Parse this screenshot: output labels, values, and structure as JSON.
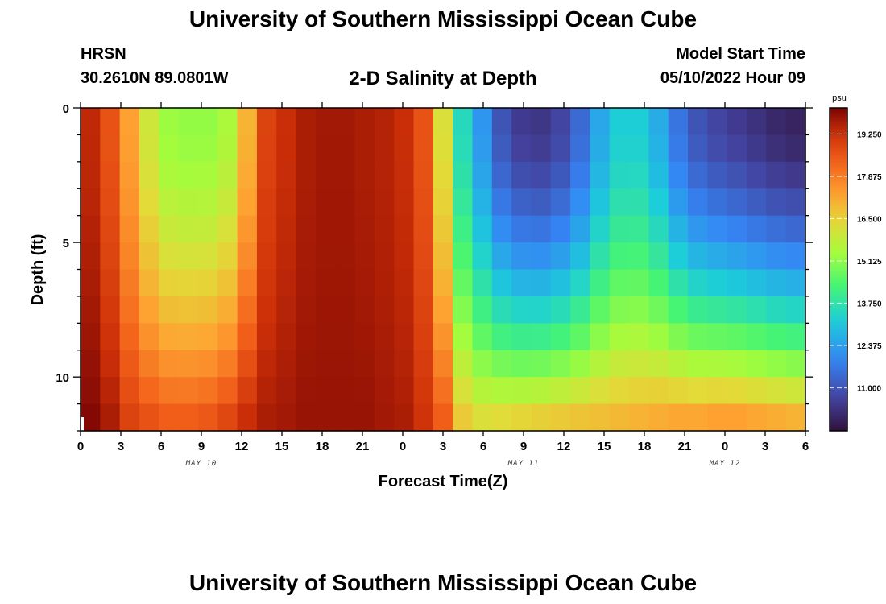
{
  "header": {
    "title": "University of Southern Mississippi Ocean Cube",
    "station": "HRSN",
    "coords": "30.2610N  89.0801W",
    "plot_title": "2-D Salinity at Depth",
    "model_start_label": "Model Start Time",
    "model_start_value": "05/10/2022 Hour 09"
  },
  "footer": {
    "title": "University of Southern Mississippi Ocean Cube"
  },
  "chart_data": {
    "type": "heatmap",
    "title": "2-D Salinity at Depth",
    "xlabel": "Forecast Time(Z)",
    "ylabel": "Depth (ft)",
    "x_ticks": [
      "0",
      "3",
      "6",
      "9",
      "12",
      "15",
      "18",
      "21",
      "0",
      "3",
      "6",
      "9",
      "12",
      "15",
      "18",
      "21",
      "0",
      "3",
      "6"
    ],
    "date_labels": [
      {
        "label": "MAY 10",
        "tick_index": 4
      },
      {
        "label": "MAY 11",
        "tick_index": 12
      },
      {
        "label": "MAY 12",
        "tick_index": 17
      }
    ],
    "y_ticks": [
      "0",
      "5",
      "10"
    ],
    "y_tick_values": [
      0,
      5,
      10
    ],
    "ylim": [
      0,
      12
    ],
    "xlim_hours": [
      0,
      54
    ],
    "colorbar": {
      "unit": "psu",
      "range": [
        9.6,
        20.1
      ],
      "tick_labels": [
        "19.250",
        "17.875",
        "16.500",
        "15.125",
        "13.750",
        "12.375",
        "11.000"
      ],
      "tick_values": [
        19.25,
        17.875,
        16.5,
        15.125,
        13.75,
        12.375,
        11.0
      ]
    },
    "time_hours": [
      0,
      1.5,
      3,
      4.5,
      6,
      7.5,
      9,
      10.5,
      12,
      13.5,
      15,
      16.5,
      18,
      19.5,
      21,
      22.5,
      24,
      25.5,
      27,
      28.5,
      30,
      31.5,
      33,
      34.5,
      36,
      37.5,
      39,
      40.5,
      42,
      43.5,
      45,
      46.5,
      48,
      49.5,
      51,
      52.5,
      54
    ],
    "depth_rows_ft": [
      0.5,
      1.5,
      2.5,
      3.5,
      4.5,
      5.5,
      6.5,
      7.5,
      8.5,
      9.5,
      10.5,
      11.5
    ],
    "salinity_surface": [
      19.4,
      18.6,
      17.3,
      16.0,
      15.3,
      15.2,
      15.2,
      15.5,
      17.0,
      18.9,
      19.3,
      19.6,
      19.7,
      19.7,
      19.6,
      19.5,
      19.3,
      18.6,
      16.2,
      13.5,
      12.2,
      11.0,
      10.5,
      10.4,
      10.7,
      11.4,
      12.5,
      13.2,
      13.2,
      12.6,
      11.6,
      11.0,
      10.7,
      10.5,
      10.3,
      10.1,
      10.0
    ],
    "salinity_bottom": [
      20.0,
      19.6,
      18.9,
      18.6,
      18.4,
      18.4,
      18.5,
      18.8,
      19.3,
      19.6,
      19.7,
      19.8,
      19.8,
      19.8,
      19.8,
      19.7,
      19.6,
      19.2,
      18.4,
      16.6,
      16.2,
      16.3,
      16.4,
      16.5,
      16.6,
      16.7,
      16.8,
      16.9,
      17.0,
      17.1,
      17.2,
      17.2,
      17.3,
      17.3,
      17.2,
      17.1,
      17.0
    ]
  }
}
